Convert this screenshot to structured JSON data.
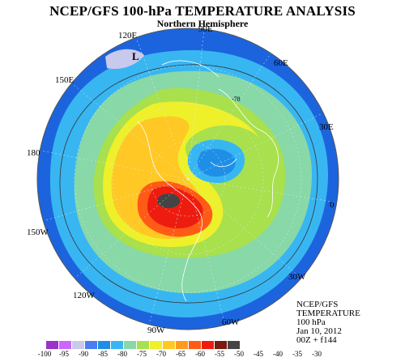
{
  "title": "NCEP/GFS 100-hPa TEMPERATURE ANALYSIS",
  "subtitle": "Northern Hemisphere",
  "longitude_labels": [
    "90E",
    "60E",
    "30E",
    "0",
    "30W",
    "60W",
    "90W",
    "120W",
    "150W",
    "180",
    "150E",
    "120E"
  ],
  "contour_label": "-78",
  "low_marker": "L",
  "info_lines": [
    "NCEP/GFS",
    "TEMPERATURE",
    "100 hPa",
    "Jan 10, 2012",
    "00Z + f144"
  ],
  "colorbar": {
    "labels": [
      "-100",
      "-95",
      "-90",
      "-85",
      "-80",
      "-75",
      "-70",
      "-65",
      "-60",
      "-55",
      "-50",
      "-45",
      "-40",
      "-35",
      "-30"
    ],
    "colors": [
      "#9933cc",
      "#cc66ff",
      "#c9c9ee",
      "#4a7cf2",
      "#1e8ee6",
      "#38b6f2",
      "#88d8a8",
      "#a8e04e",
      "#eef02a",
      "#ffc824",
      "#ff9a20",
      "#ff5a16",
      "#ee1c10",
      "#7a1a10",
      "#444444"
    ]
  },
  "colors": {
    "outer_blue": "#1c64de",
    "mid_blue": "#38b6f2",
    "green": "#88d8a8",
    "yellow_green": "#a8e04e",
    "yellow": "#eef02a",
    "orange": "#ffc824",
    "red": "#ee2a18"
  }
}
